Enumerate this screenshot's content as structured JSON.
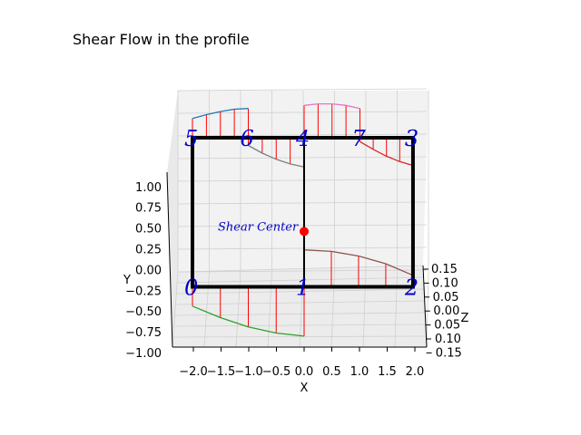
{
  "chart_data": {
    "type": "line",
    "title": "Shear Flow in the profile",
    "xlabel": "X",
    "ylabel": "Y",
    "zlabel": "Z",
    "x_ticks": [
      "−2.0",
      "−1.5",
      "−1.0",
      "−0.5",
      "0.0",
      "0.5",
      "1.0",
      "1.5",
      "2.0"
    ],
    "y_ticks": [
      "−1.00",
      "−0.75",
      "−0.50",
      "−0.25",
      "0.00",
      "0.25",
      "0.50",
      "0.75",
      "1.00"
    ],
    "z_ticks": [
      "0.15",
      "0.10",
      "0.05",
      "0.00",
      "0.05",
      "0.10",
      "0.15"
    ],
    "xlim": [
      -2.0,
      2.0
    ],
    "ylim": [
      -1.0,
      1.0
    ],
    "zlim": [
      -0.15,
      0.15
    ],
    "grid": true,
    "nodes": [
      {
        "label": "0",
        "x": -2.0,
        "y": -0.25
      },
      {
        "label": "1",
        "x": 0.0,
        "y": -0.25
      },
      {
        "label": "2",
        "x": 1.95,
        "y": -0.25
      },
      {
        "label": "3",
        "x": 1.95,
        "y": 1.5
      },
      {
        "label": "4",
        "x": 0.0,
        "y": 1.5
      },
      {
        "label": "5",
        "x": -2.0,
        "y": 1.5
      },
      {
        "label": "6",
        "x": -1.0,
        "y": 1.5
      },
      {
        "label": "7",
        "x": 1.0,
        "y": 1.5
      }
    ],
    "profile_color": "#000000",
    "shear_center": {
      "label": "Shear Center",
      "x": 0.0,
      "y": 0.4,
      "color": "#ff0000",
      "label_color": "#0000cc"
    },
    "hatch_color": "#ff0000",
    "series": [
      {
        "from": "0",
        "to": "1",
        "color": "#2ca02c",
        "values": [
          -0.25,
          -0.4,
          -0.52,
          -0.6,
          -0.64
        ]
      },
      {
        "from": "1",
        "to": "2",
        "color": "#8c564b",
        "values": [
          0.48,
          0.46,
          0.4,
          0.3,
          0.15
        ]
      },
      {
        "from": "4",
        "to": "6",
        "color": "#7f7f7f",
        "values": [
          -0.38,
          -0.34,
          -0.28,
          -0.2,
          -0.1
        ]
      },
      {
        "from": "6",
        "to": "5",
        "color": "#1f77b4",
        "values": [
          0.38,
          0.37,
          0.34,
          0.3,
          0.25
        ]
      },
      {
        "from": "4",
        "to": "7",
        "color": "#e377c2",
        "values": [
          0.42,
          0.44,
          0.44,
          0.42,
          0.38
        ]
      },
      {
        "from": "7",
        "to": "3",
        "color": "#d62728",
        "values": [
          -0.05,
          -0.15,
          -0.24,
          -0.31,
          -0.36
        ]
      },
      {
        "from": "5",
        "to": "0",
        "color": "#ff7f0e",
        "values": [
          0.03,
          0.03,
          0.03,
          0.03,
          0.03
        ]
      },
      {
        "from": "4",
        "to": "1",
        "color": "#bcbd22",
        "values": [
          0.01,
          0.01,
          0.01,
          0.01,
          0.01
        ]
      },
      {
        "from": "2",
        "to": "3",
        "color": "#17becf",
        "values": [
          0.02,
          0.02,
          0.02,
          0.02,
          0.02
        ]
      }
    ]
  }
}
